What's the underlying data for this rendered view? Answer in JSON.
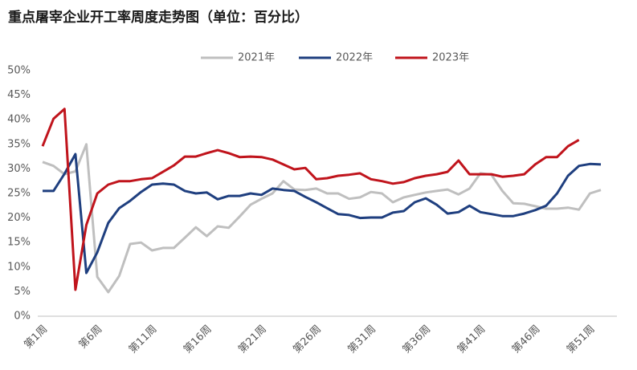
{
  "chart_data": {
    "type": "line",
    "title": "重点屠宰企业开工率周度走势图（单位：百分比）",
    "categories": [
      "第1周",
      null,
      null,
      null,
      null,
      "第6周",
      null,
      null,
      null,
      null,
      "第11周",
      null,
      null,
      null,
      null,
      "第16周",
      null,
      null,
      null,
      null,
      "第21周",
      null,
      null,
      null,
      null,
      "第26周",
      null,
      null,
      null,
      null,
      "第31周",
      null,
      null,
      null,
      null,
      "第36周",
      null,
      null,
      null,
      null,
      "第41周",
      null,
      null,
      null,
      null,
      "第46周",
      null,
      null,
      null,
      null,
      "第51周",
      null
    ],
    "series": [
      {
        "name": "2021年",
        "color": "#bfbfbf",
        "values": [
          31.4,
          30.6,
          28.9,
          29.5,
          35,
          8,
          4.9,
          8.2,
          14.7,
          15,
          13.4,
          13.9,
          13.9,
          16,
          18.1,
          16.3,
          18.3,
          18,
          20.3,
          22.7,
          23.9,
          25,
          27.5,
          25.8,
          25.7,
          26,
          25,
          25,
          23.9,
          24.2,
          25.3,
          25,
          23.2,
          24.2,
          24.7,
          25.2,
          25.5,
          25.8,
          24.8,
          26,
          29.1,
          28.8,
          25.5,
          23,
          22.9,
          22.4,
          21.9,
          21.9,
          22.1,
          21.7,
          25,
          25.7
        ]
      },
      {
        "name": "2022年",
        "color": "#1f3f7f",
        "values": [
          25.5,
          25.5,
          29,
          33,
          8.8,
          13,
          19,
          22,
          23.5,
          25.3,
          26.8,
          27,
          26.8,
          25.5,
          25,
          25.2,
          23.8,
          24.5,
          24.5,
          25,
          24.7,
          26,
          25.7,
          25.5,
          24.3,
          23.2,
          22,
          20.8,
          20.6,
          20,
          20.1,
          20.1,
          21.1,
          21.4,
          23.2,
          24,
          22.7,
          20.9,
          21.2,
          22.5,
          21.2,
          20.8,
          20.4,
          20.4,
          20.9,
          21.6,
          22.5,
          25,
          28.6,
          30.6,
          31,
          30.9
        ]
      },
      {
        "name": "2023年",
        "color": "#c0141c",
        "values": [
          34.6,
          40.2,
          42.2,
          5.4,
          18.6,
          25,
          26.8,
          27.5,
          27.5,
          27.9,
          28.1,
          29.4,
          30.7,
          32.5,
          32.5,
          33.2,
          33.8,
          33.2,
          32.4,
          32.5,
          32.4,
          31.9,
          30.9,
          29.9,
          30.2,
          27.9,
          28.1,
          28.6,
          28.8,
          29.1,
          27.9,
          27.5,
          27,
          27.3,
          28.1,
          28.6,
          28.9,
          29.4,
          31.7,
          28.9,
          28.9,
          28.9,
          28.4,
          28.6,
          28.9,
          30.9,
          32.4,
          32.4,
          34.6,
          35.9,
          null,
          null
        ]
      }
    ],
    "ylim": [
      0,
      50
    ],
    "yticks": [
      {
        "value": 0,
        "label": "0%"
      },
      {
        "value": 5,
        "label": "5%"
      },
      {
        "value": 10,
        "label": "10%"
      },
      {
        "value": 15,
        "label": "15%"
      },
      {
        "value": 20,
        "label": "20%"
      },
      {
        "value": 25,
        "label": "25%"
      },
      {
        "value": 30,
        "label": "30%"
      },
      {
        "value": 35,
        "label": "35%"
      },
      {
        "value": 40,
        "label": "40%"
      },
      {
        "value": 45,
        "label": "45%"
      },
      {
        "value": 50,
        "label": "50%"
      }
    ],
    "grid": false,
    "legend": "top"
  }
}
